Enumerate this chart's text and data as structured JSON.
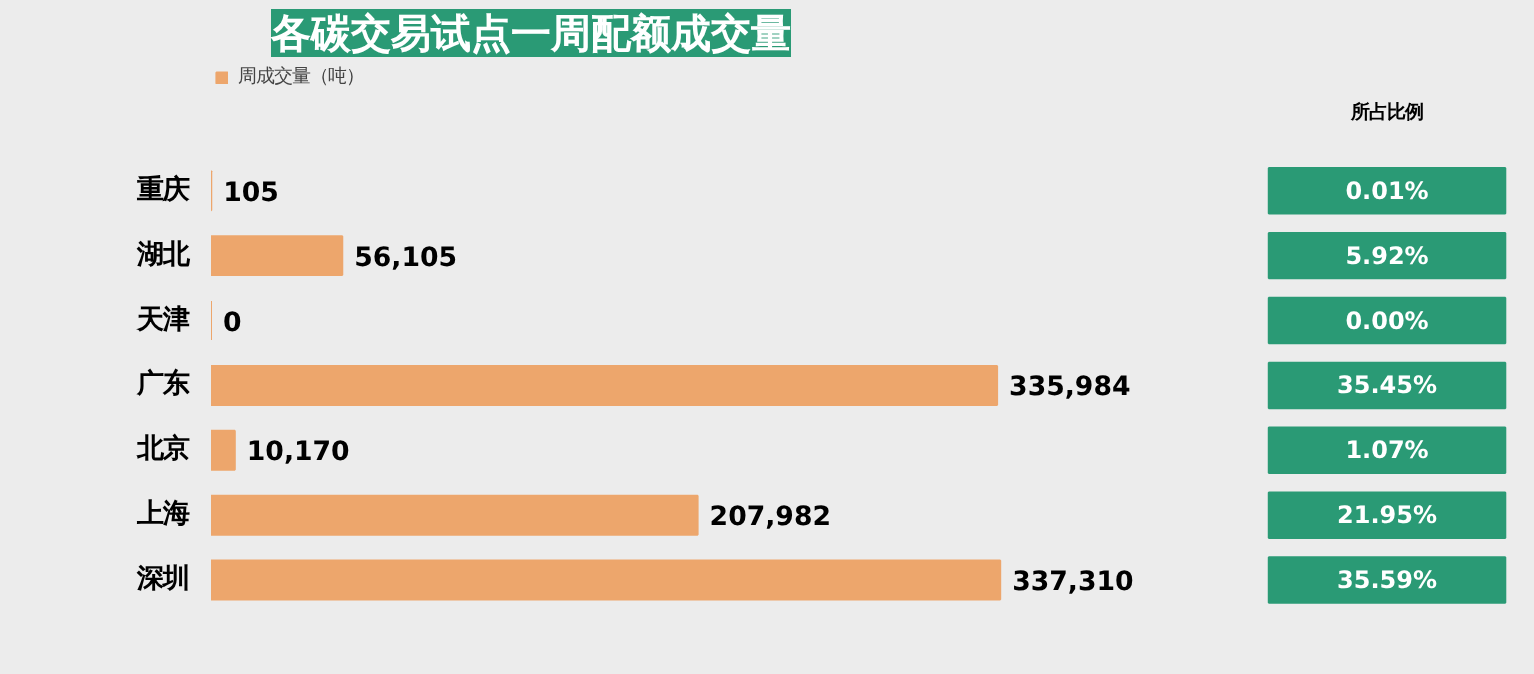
{
  "chart_data": [
    {
      "type": "bar",
      "orientation": "horizontal",
      "title": "各碳交易试点一周配额成交量",
      "categories": [
        "重庆",
        "湖北",
        "天津",
        "广东",
        "北京",
        "上海",
        "深圳"
      ],
      "series": [
        {
          "name": "周成交量（吨）",
          "color": "#eda66c",
          "values": [
            105,
            56105,
            0,
            335984,
            10170,
            207982,
            337310
          ],
          "value_labels": [
            "105",
            "56,105",
            "0",
            "335,984",
            "10,170",
            "207,982",
            "337,310"
          ]
        }
      ],
      "legend": "top left",
      "tick_labels": "y",
      "grid": false
    },
    {
      "type": "other",
      "title": "所占比例",
      "annotations": [
        "0.01%",
        "5.92%",
        "0.00%",
        "35.45%",
        "1.07%",
        "21.95%",
        "35.59%"
      ]
    }
  ]
}
